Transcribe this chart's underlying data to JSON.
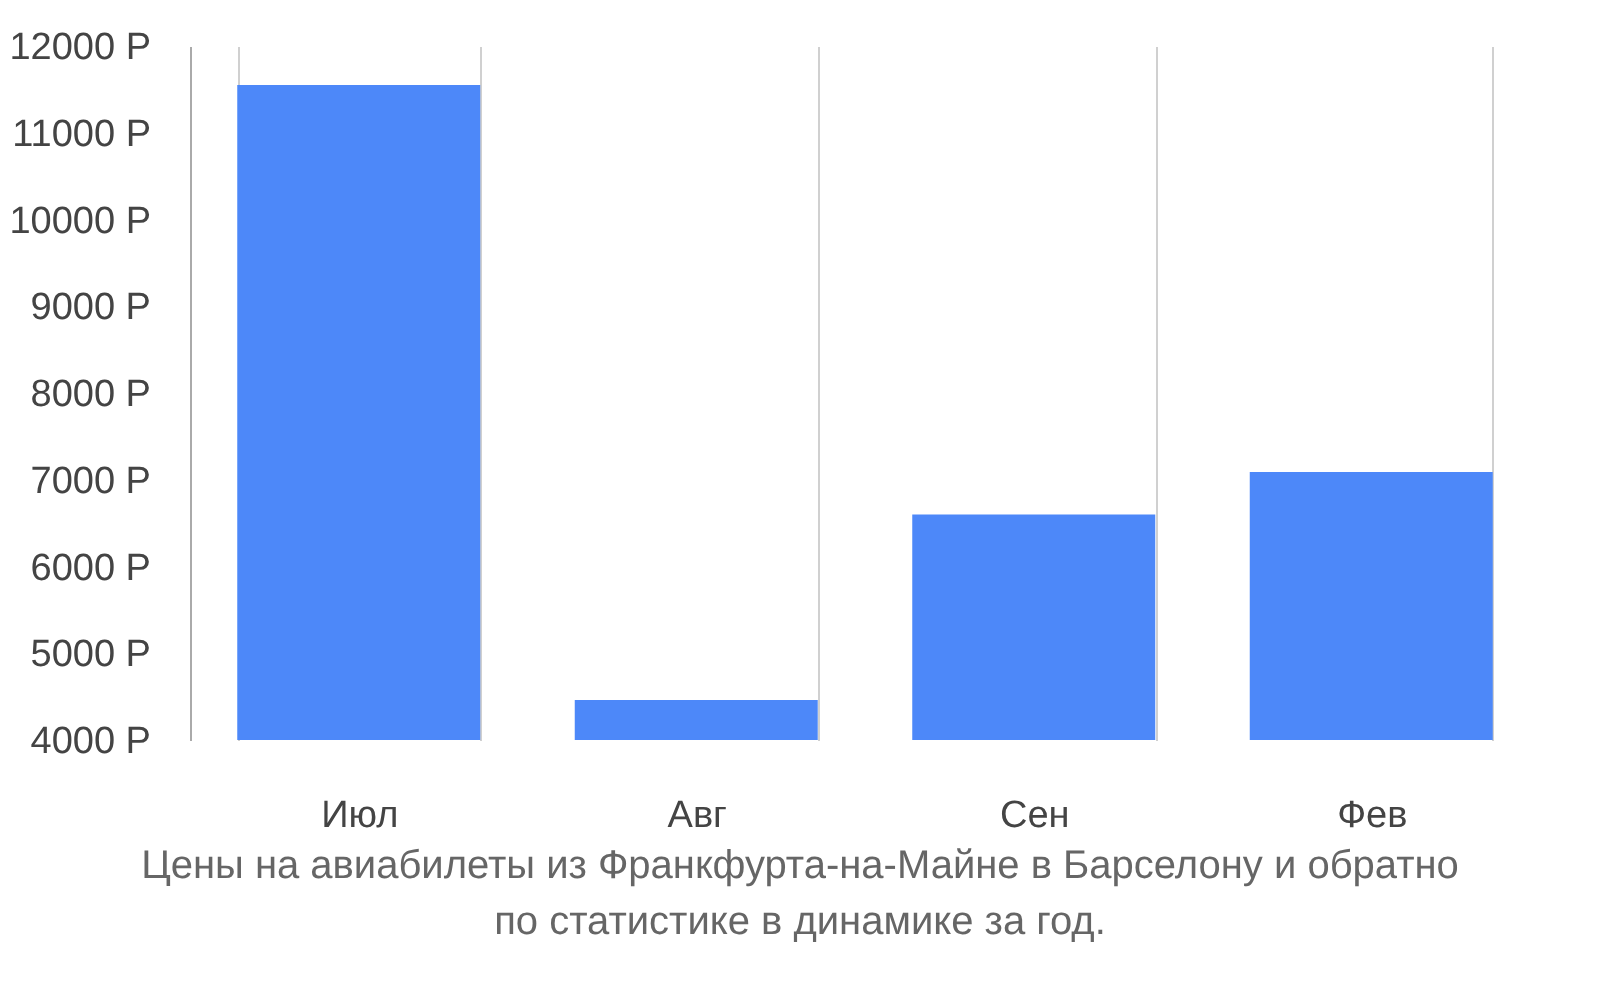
{
  "chart_data": {
    "type": "bar",
    "categories": [
      "Июл",
      "Авг",
      "Сен",
      "Фев"
    ],
    "values": [
      11550,
      4460,
      6600,
      7090
    ],
    "color": "#4d88f9",
    "ylim": [
      4000,
      12000
    ],
    "yticks": [
      {
        "value": 4000,
        "label": "4000 Р"
      },
      {
        "value": 5000,
        "label": "5000 Р"
      },
      {
        "value": 6000,
        "label": "6000 Р"
      },
      {
        "value": 7000,
        "label": "7000 Р"
      },
      {
        "value": 8000,
        "label": "8000 Р"
      },
      {
        "value": 9000,
        "label": "9000 Р"
      },
      {
        "value": 10000,
        "label": "10000 Р"
      },
      {
        "value": 11000,
        "label": "11000 Р"
      },
      {
        "value": 12000,
        "label": "12000 Р"
      }
    ],
    "grid": "x",
    "annotations": [
      "Цены на авиабилеты из Франкфурта-на-Майне в Барселону и обратно",
      "по статистике в динамике за год."
    ]
  }
}
